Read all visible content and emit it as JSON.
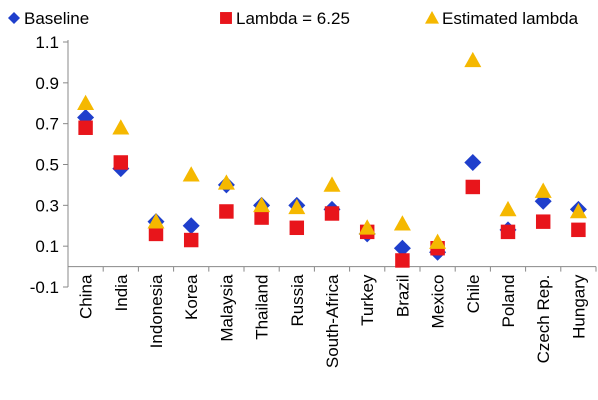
{
  "chart_data": {
    "type": "scatter",
    "categories": [
      "China",
      "India",
      "Indonesia",
      "Korea",
      "Malaysia",
      "Thailand",
      "Russia",
      "South-Africa",
      "Turkey",
      "Brazil",
      "Mexico",
      "Chile",
      "Poland",
      "Czech Rep.",
      "Hungary"
    ],
    "series": [
      {
        "name": "Baseline",
        "marker": "diamond",
        "color": "#1f3fcc",
        "values": [
          0.73,
          0.48,
          0.22,
          0.2,
          0.4,
          0.3,
          0.3,
          0.28,
          0.16,
          0.09,
          0.07,
          0.51,
          0.18,
          0.32,
          0.28
        ]
      },
      {
        "name": "Lambda = 6.25",
        "marker": "square",
        "color": "#e8151b",
        "values": [
          0.68,
          0.51,
          0.16,
          0.13,
          0.27,
          0.24,
          0.19,
          0.26,
          0.17,
          0.03,
          0.09,
          0.39,
          0.17,
          0.22,
          0.18
        ]
      },
      {
        "name": "Estimated lambda",
        "marker": "triangle",
        "color": "#f5b800",
        "values": [
          0.8,
          0.68,
          0.22,
          0.45,
          0.41,
          0.3,
          0.29,
          0.4,
          0.19,
          0.21,
          0.12,
          1.01,
          0.28,
          0.37,
          0.27
        ]
      }
    ],
    "yticks": [
      "-0.1",
      "0.1",
      "0.3",
      "0.5",
      "0.7",
      "0.9",
      "1.1"
    ],
    "ylim": [
      -0.1,
      1.1
    ],
    "legend_position": "top",
    "grid": false
  }
}
